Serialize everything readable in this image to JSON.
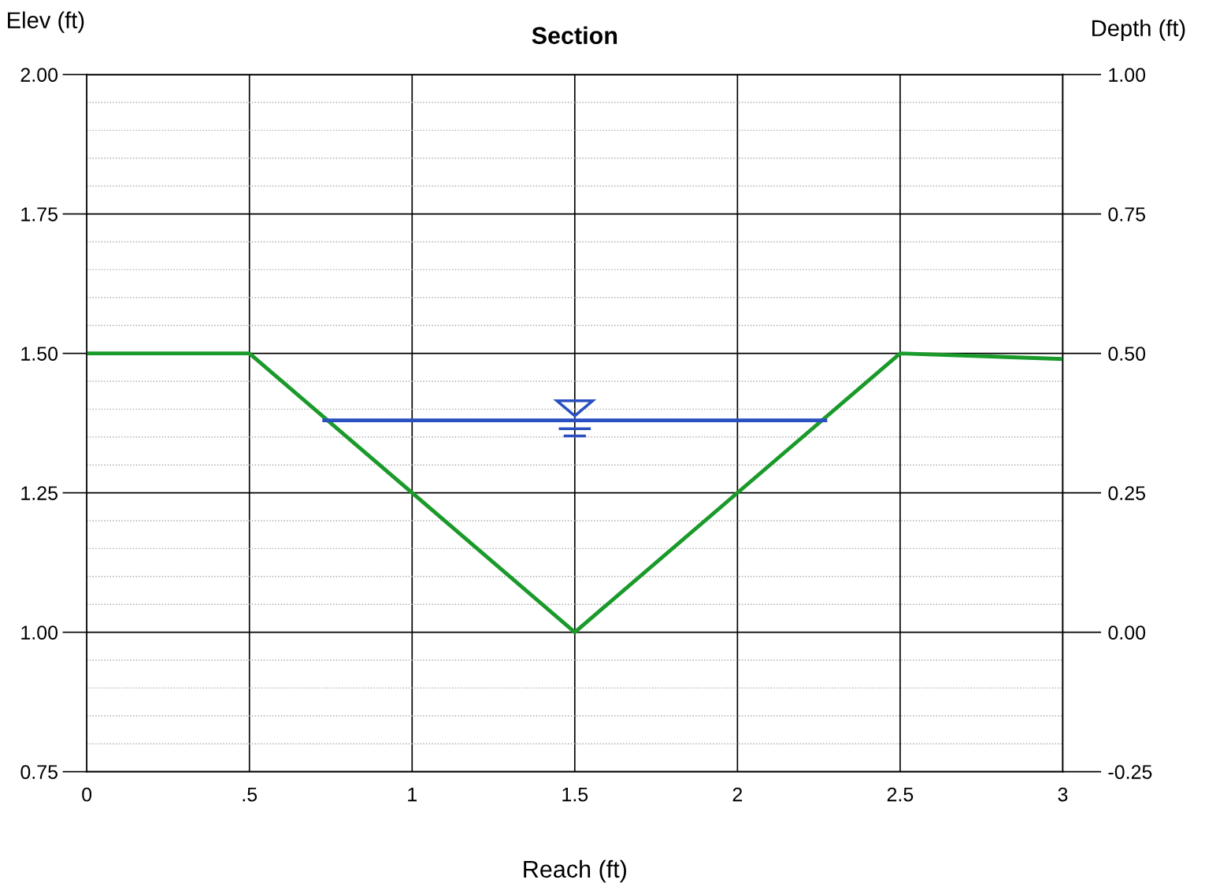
{
  "chart_data": {
    "type": "line",
    "title": "Section",
    "xlabel": "Reach (ft)",
    "ylabel": "Elev (ft)",
    "y2label": "Depth (ft)",
    "series": [
      {
        "x": [
          0,
          0.5,
          1.5,
          2.5,
          3
        ],
        "values": [
          1.5,
          1.5,
          1.0,
          1.5,
          1.49
        ],
        "color": "#1a9a2a"
      },
      {
        "x": [
          0.73,
          2.27
        ],
        "values": [
          1.38,
          1.38
        ],
        "color": "#2a4fc0"
      }
    ],
    "xlim": [
      0,
      3
    ],
    "xticks": [
      0,
      {
        "value": 0.5,
        "label": ".5"
      },
      1,
      1.5,
      2,
      2.5,
      3
    ],
    "ylim": [
      0.75,
      2.0
    ],
    "yticks": [
      {
        "value": 0.75,
        "label": "0.75"
      },
      {
        "value": 1.0,
        "label": "1.00"
      },
      {
        "value": 1.25,
        "label": "1.25"
      },
      {
        "value": 1.5,
        "label": "1.50"
      },
      {
        "value": 1.75,
        "label": "1.75"
      },
      {
        "value": 2.0,
        "label": "2.00"
      }
    ],
    "y2lim": [
      -0.25,
      1.0
    ],
    "y2ticks": [
      {
        "value": -0.25,
        "label": "-0.25"
      },
      {
        "value": 0.0,
        "label": "0.00"
      },
      {
        "value": 0.25,
        "label": "0.25"
      },
      {
        "value": 0.5,
        "label": "0.50"
      },
      {
        "value": 0.75,
        "label": "0.75"
      },
      {
        "value": 1.0,
        "label": "1.00"
      }
    ],
    "grid": true,
    "marker": "none",
    "line_style": "solid"
  }
}
